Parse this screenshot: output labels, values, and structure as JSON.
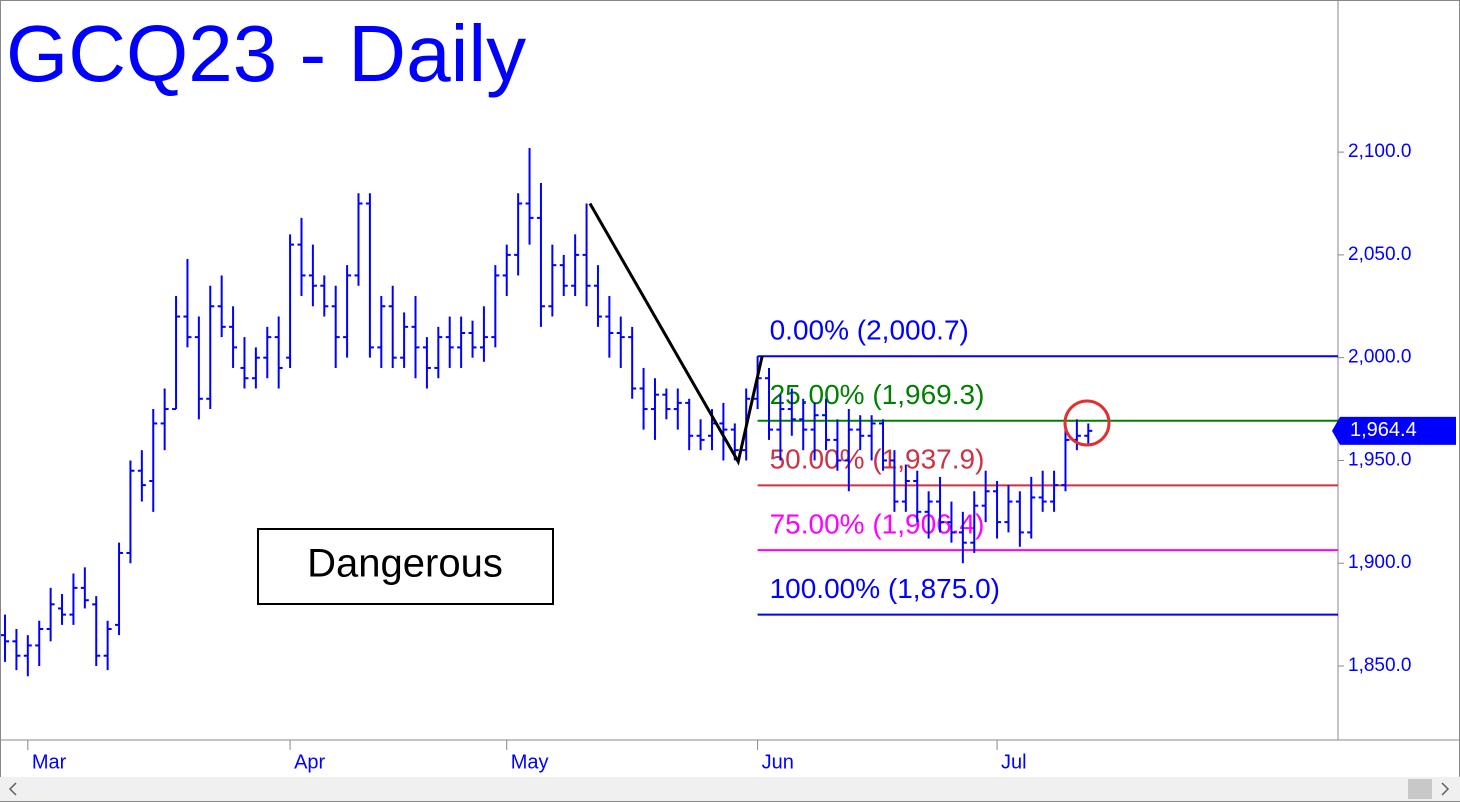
{
  "chart_data": {
    "type": "ohlc",
    "title": "GCQ23 - Daily",
    "color": "#0000ff",
    "x": [
      0,
      1,
      2,
      3,
      4,
      5,
      6,
      7,
      8,
      9,
      10,
      11,
      12,
      13,
      14,
      15,
      16,
      17,
      18,
      19,
      20,
      21,
      22,
      23,
      24,
      25,
      26,
      27,
      28,
      29,
      30,
      31,
      32,
      33,
      34,
      35,
      36,
      37,
      38,
      39,
      40,
      41,
      42,
      43,
      44,
      45,
      46,
      47,
      48,
      49,
      50,
      51,
      52,
      53,
      54,
      55,
      56,
      57,
      58,
      59,
      60,
      61,
      62,
      63,
      64,
      65,
      66,
      67,
      68,
      69,
      70,
      71,
      72,
      73,
      74,
      75,
      76,
      77,
      78,
      79,
      80,
      81,
      82,
      83,
      84,
      85,
      86,
      87,
      88,
      89,
      90,
      91,
      92,
      93,
      94,
      95
    ],
    "open": [
      1865,
      1862,
      1855,
      1860,
      1868,
      1878,
      1875,
      1888,
      1880,
      1855,
      1870,
      1905,
      1945,
      1940,
      1968,
      1975,
      2020,
      2010,
      1980,
      2025,
      2015,
      1995,
      1990,
      2000,
      2010,
      2000,
      2055,
      2040,
      2035,
      2025,
      2010,
      2040,
      2075,
      2005,
      2025,
      2000,
      2015,
      2005,
      1995,
      2010,
      2005,
      2012,
      2005,
      2010,
      2040,
      2050,
      2075,
      2068,
      2025,
      2045,
      2035,
      2050,
      2035,
      2020,
      2012,
      2010,
      1985,
      1975,
      1982,
      1975,
      1978,
      1962,
      1962,
      1968,
      1965,
      1955,
      1980,
      1990,
      1965,
      1975,
      1970,
      1965,
      1972,
      1960,
      1950,
      1965,
      1962,
      1968,
      1950,
      1930,
      1940,
      1925,
      1930,
      1920,
      1915,
      1910,
      1928,
      1935,
      1920,
      1930,
      1915,
      1932,
      1930,
      1938,
      1960,
      1962
    ],
    "high": [
      1875,
      1868,
      1865,
      1872,
      1888,
      1885,
      1895,
      1898,
      1884,
      1872,
      1910,
      1950,
      1955,
      1975,
      1985,
      2030,
      2048,
      2020,
      2035,
      2040,
      2025,
      2010,
      2005,
      2015,
      2020,
      2060,
      2068,
      2055,
      2040,
      2035,
      2045,
      2080,
      2080,
      2030,
      2035,
      2022,
      2030,
      2010,
      2015,
      2020,
      2020,
      2018,
      2025,
      2045,
      2055,
      2080,
      2102,
      2085,
      2055,
      2050,
      2060,
      2075,
      2045,
      2030,
      2020,
      2015,
      1995,
      1990,
      1985,
      1985,
      1980,
      1970,
      1975,
      1978,
      1968,
      1985,
      2000.7,
      1995,
      1982,
      1985,
      1980,
      1978,
      1980,
      1970,
      1975,
      1972,
      1972,
      1970,
      1955,
      1948,
      1945,
      1935,
      1942,
      1930,
      1925,
      1935,
      1945,
      1940,
      1938,
      1935,
      1942,
      1945,
      1945,
      1965,
      1970,
      1968
    ],
    "low": [
      1852,
      1848,
      1845,
      1850,
      1862,
      1870,
      1870,
      1878,
      1850,
      1848,
      1865,
      1900,
      1930,
      1925,
      1955,
      1975,
      2005,
      1970,
      1975,
      2010,
      1995,
      1985,
      1985,
      1990,
      1985,
      1995,
      2030,
      2025,
      2020,
      1995,
      2000,
      2035,
      2000,
      1995,
      1995,
      1995,
      1990,
      1985,
      1990,
      1995,
      1995,
      2000,
      1998,
      2005,
      2030,
      2040,
      2055,
      2015,
      2020,
      2030,
      2030,
      2025,
      2015,
      2000,
      1995,
      1980,
      1965,
      1960,
      1970,
      1965,
      1955,
      1955,
      1955,
      1950,
      1950,
      1950,
      1975,
      1960,
      1950,
      1962,
      1955,
      1950,
      1955,
      1945,
      1935,
      1955,
      1950,
      1945,
      1925,
      1925,
      1920,
      1912,
      1915,
      1910,
      1900,
      1905,
      1920,
      1912,
      1915,
      1908,
      1912,
      1925,
      1925,
      1935,
      1955,
      1958
    ],
    "close": [
      1862,
      1855,
      1860,
      1868,
      1880,
      1875,
      1888,
      1882,
      1855,
      1868,
      1905,
      1945,
      1938,
      1968,
      1975,
      2020,
      2010,
      1980,
      2025,
      2015,
      2005,
      1990,
      2000,
      2010,
      1995,
      2055,
      2040,
      2035,
      2025,
      2010,
      2040,
      2075,
      2005,
      2025,
      2000,
      2015,
      2005,
      1995,
      2010,
      2005,
      2012,
      2005,
      2010,
      2040,
      2050,
      2075,
      2068,
      2025,
      2045,
      2035,
      2050,
      2035,
      2020,
      2012,
      2010,
      1985,
      1975,
      1982,
      1975,
      1978,
      1962,
      1960,
      1968,
      1965,
      1955,
      1980,
      1990,
      1965,
      1975,
      1970,
      1965,
      1972,
      1960,
      1950,
      1965,
      1962,
      1968,
      1950,
      1930,
      1940,
      1925,
      1930,
      1920,
      1915,
      1910,
      1928,
      1935,
      1920,
      1930,
      1915,
      1932,
      1930,
      1938,
      1960,
      1962,
      1964.4
    ],
    "xlim": [
      -0.44,
      116.9
    ],
    "ylim": [
      1814,
      2174
    ],
    "xticks": [
      {
        "value": 2,
        "label": "Mar"
      },
      {
        "value": 25,
        "label": "Apr"
      },
      {
        "value": 44,
        "label": "May"
      },
      {
        "value": 66,
        "label": "Jun"
      },
      {
        "value": 87,
        "label": "Jul"
      }
    ],
    "yticks": [
      {
        "value": 1850,
        "label": "1,850.0"
      },
      {
        "value": 1900,
        "label": "1,900.0"
      },
      {
        "value": 1950,
        "label": "1,950.0"
      },
      {
        "value": 2000,
        "label": "2,000.0"
      },
      {
        "value": 2050,
        "label": "2,050.0"
      },
      {
        "value": 2100,
        "label": "2,100.0"
      }
    ],
    "last_price": {
      "value": 1964.4,
      "label": "1,964.4"
    },
    "fib_levels": [
      {
        "label": "0.00% (2,000.7)",
        "value": 2000.7,
        "color": "#0000ff"
      },
      {
        "label": "25.00% (1,969.3)",
        "value": 1969.3,
        "color": "#008000"
      },
      {
        "label": "50.00% (1,937.9)",
        "value": 1937.9,
        "color": "#cc3344"
      },
      {
        "label": "75.00% (1,906.4)",
        "value": 1906.4,
        "color": "#ff00ff"
      },
      {
        "label": "100.00% (1,875.0)",
        "value": 1875.0,
        "color": "#0000ff"
      }
    ],
    "fib_start": 66,
    "swing": {
      "x": [
        51.3,
        64.3,
        66.4
      ],
      "y": [
        2075,
        1949.4,
        2000.7
      ],
      "color": "#000000"
    },
    "annotation": "Dangerous"
  }
}
